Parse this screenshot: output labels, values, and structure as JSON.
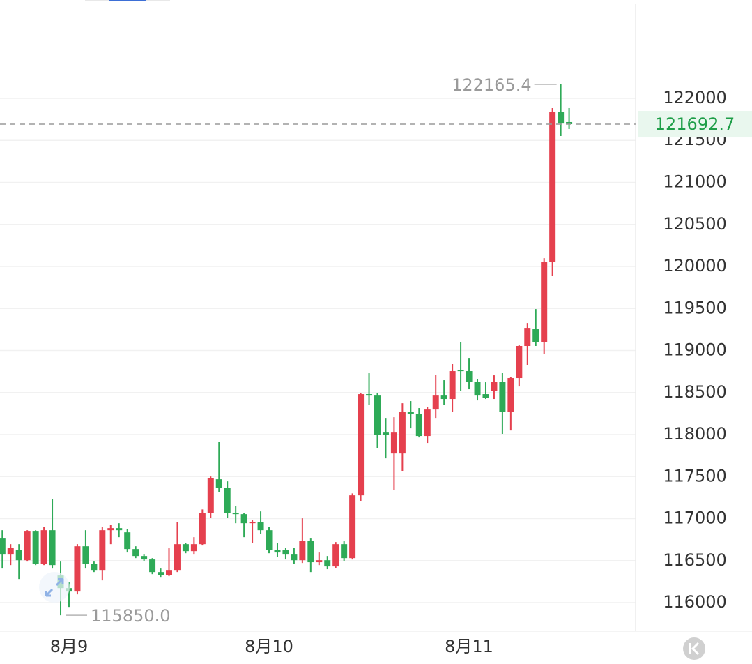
{
  "chart_data": {
    "type": "candlestick",
    "categories": [
      null,
      null,
      null,
      null,
      null,
      null,
      null,
      null,
      "8月9",
      null,
      null,
      null,
      null,
      null,
      null,
      null,
      null,
      null,
      null,
      null,
      null,
      null,
      null,
      null,
      null,
      null,
      null,
      null,
      null,
      null,
      null,
      null,
      "8月10",
      null,
      null,
      null,
      null,
      null,
      null,
      null,
      null,
      null,
      null,
      null,
      null,
      null,
      null,
      null,
      null,
      null,
      null,
      null,
      null,
      null,
      null,
      null,
      "8月11",
      null,
      null,
      null,
      null,
      null,
      null,
      null,
      null,
      null,
      null,
      null,
      null
    ],
    "open": [
      116763,
      116572,
      116630,
      116505,
      116846,
      116464,
      116862,
      116323,
      116173,
      116132,
      116671,
      116464,
      116389,
      116862,
      116887,
      116837,
      116638,
      116555,
      116514,
      116364,
      116331,
      116389,
      116696,
      116613,
      116696,
      117070,
      117468,
      117369,
      117070,
      117053,
      116945,
      116962,
      116862,
      116630,
      116630,
      116572,
      116505,
      116738,
      116481,
      116505,
      116431,
      116696,
      116530,
      117277,
      118481,
      118464,
      118024,
      117775,
      117775,
      118273,
      118248,
      117983,
      118298,
      118464,
      118423,
      118771,
      118755,
      118630,
      118481,
      118522,
      118630,
      118273,
      118672,
      119054,
      119253,
      119103,
      120058,
      121842,
      121718
    ],
    "high": [
      116862,
      116696,
      116696,
      116862,
      116862,
      116904,
      117236,
      116489,
      116240,
      116696,
      116862,
      116489,
      116904,
      116929,
      116945,
      116879,
      116671,
      116572,
      116530,
      116406,
      116647,
      116962,
      116713,
      116779,
      117109,
      117501,
      117916,
      117443,
      117153,
      117070,
      116987,
      117086,
      116904,
      116713,
      116655,
      116655,
      117003,
      116763,
      116597,
      116555,
      116721,
      116730,
      117300,
      118497,
      118730,
      118497,
      118190,
      118207,
      118373,
      118398,
      118315,
      118331,
      118713,
      118647,
      118838,
      119103,
      118912,
      118663,
      118622,
      118705,
      118730,
      118689,
      119070,
      119327,
      119493,
      120099,
      121884,
      122165.4,
      121884
    ],
    "low": [
      116406,
      116447,
      116281,
      116489,
      116447,
      116447,
      116406,
      115850,
      115949,
      116099,
      116406,
      116364,
      116265,
      116696,
      116779,
      116597,
      116530,
      116497,
      116339,
      116306,
      116315,
      116364,
      116588,
      116572,
      116680,
      117012,
      117319,
      117012,
      116945,
      116779,
      116713,
      116821,
      116588,
      116547,
      116514,
      116464,
      116472,
      116364,
      116447,
      116398,
      116414,
      116497,
      116514,
      117211,
      118356,
      117842,
      117717,
      117344,
      117568,
      118074,
      117966,
      117900,
      118190,
      118356,
      118273,
      118522,
      118539,
      118406,
      118423,
      118423,
      118008,
      118049,
      118572,
      118829,
      119054,
      118954,
      119892,
      121552,
      121635
    ],
    "close": [
      116572,
      116655,
      116505,
      116846,
      116464,
      116862,
      116447,
      116173,
      116132,
      116671,
      116464,
      116389,
      116862,
      116887,
      116862,
      116638,
      116555,
      116514,
      116364,
      116331,
      116389,
      116696,
      116613,
      116696,
      117070,
      117485,
      117369,
      117070,
      117053,
      116945,
      116962,
      116862,
      116630,
      116597,
      116572,
      116505,
      116738,
      116481,
      116505,
      116431,
      116696,
      116530,
      117277,
      118481,
      118464,
      117999,
      117999,
      118024,
      118273,
      118248,
      117983,
      118298,
      118464,
      118423,
      118755,
      118755,
      118630,
      118464,
      118439,
      118630,
      118273,
      118672,
      119054,
      119269,
      119103,
      120058,
      121842,
      121700,
      121692.7
    ],
    "up_color": "#e5404e",
    "down_color": "#2eaa57",
    "high_label": "122165.4",
    "low_label": "115850.0",
    "ylim": [
      115660,
      123170
    ],
    "yticks": [
      116000,
      116500,
      117000,
      117500,
      118000,
      118500,
      119000,
      119500,
      120000,
      120500,
      121000,
      121500,
      122000
    ],
    "grid": true
  }
}
